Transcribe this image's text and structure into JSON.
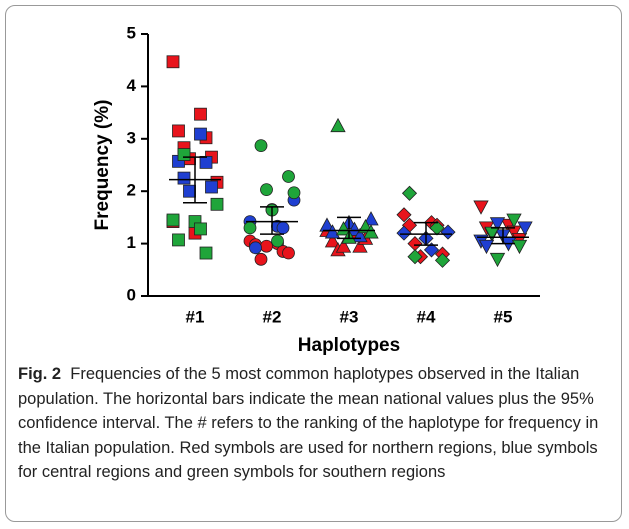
{
  "chart_data": {
    "type": "dot",
    "xlabel": "Haplotypes",
    "ylabel": "Frequency (%)",
    "categories": [
      "#1",
      "#2",
      "#3",
      "#4",
      "#5"
    ],
    "markers": [
      "square",
      "circle",
      "triangle-up",
      "diamond",
      "triangle-down"
    ],
    "series": [
      {
        "color": "#e8141c",
        "values": [
          [
            4.47,
            3.47,
            3.15,
            3.02,
            2.83,
            2.65,
            2.62,
            2.17,
            1.2,
            1.42
          ],
          [
            1.05,
            1.0,
            0.98,
            0.85,
            0.7,
            0.82,
            0.95
          ],
          [
            1.25,
            1.15,
            1.05,
            0.95,
            0.88,
            1.1,
            0.95
          ],
          [
            1.55,
            1.4,
            1.35,
            1.35,
            1.0,
            0.8,
            0.75
          ],
          [
            1.7,
            1.35,
            1.3,
            1.22,
            1.18,
            1.08
          ]
        ]
      },
      {
        "color": "#1f3fd1",
        "values": [
          [
            3.09,
            2.57,
            2.55,
            2.25,
            2.08,
            2.0
          ],
          [
            1.83,
            1.65,
            1.42,
            1.33,
            0.92,
            1.3
          ],
          [
            1.47,
            1.4,
            1.35,
            1.27,
            1.22,
            1.15
          ],
          [
            1.22,
            1.1,
            1.2,
            0.88
          ],
          [
            1.38,
            1.3,
            1.15,
            1.05,
            1.0,
            0.95
          ]
        ]
      },
      {
        "color": "#1fa53a",
        "values": [
          [
            1.75,
            1.42,
            1.45,
            1.28,
            1.07,
            0.82,
            2.7
          ],
          [
            2.87,
            2.28,
            2.03,
            1.97,
            1.64,
            1.3,
            1.05
          ],
          [
            3.25,
            1.32,
            1.28,
            1.22,
            1.12
          ],
          [
            1.96,
            1.3,
            0.75,
            0.68
          ],
          [
            1.45,
            1.2,
            0.95,
            0.7
          ]
        ]
      }
    ],
    "means": [
      2.22,
      1.42,
      1.25,
      1.18,
      1.12
    ],
    "ci": [
      [
        1.78,
        2.65
      ],
      [
        1.18,
        1.7
      ],
      [
        1.1,
        1.5
      ],
      [
        0.97,
        1.4
      ],
      [
        1.0,
        1.3
      ]
    ],
    "ylim": [
      0,
      5
    ],
    "yticks": [
      0,
      1,
      2,
      3,
      4,
      5
    ]
  },
  "caption": {
    "label": "Fig. 2",
    "text": "Frequencies of the 5 most common haplotypes observed in the Italian population. The horizontal bars indicate the mean national values plus the 95% confidence interval. The # refers to the ranking of the haplotype for frequency in the Italian population. Red symbols are used for northern regions, blue symbols for central regions and green symbols for southern regions"
  }
}
